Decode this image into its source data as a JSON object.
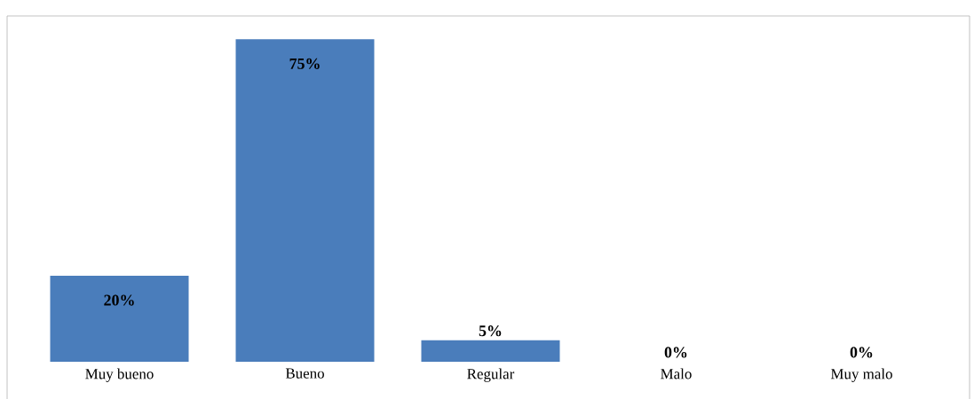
{
  "chart_data": {
    "type": "bar",
    "categories": [
      "Muy bueno",
      "Bueno",
      "Regular",
      "Malo",
      "Muy malo"
    ],
    "values": [
      20,
      75,
      5,
      0,
      0
    ],
    "value_labels": [
      "20%",
      "75%",
      "5%",
      "0%",
      "0%"
    ],
    "color": "#4a7dbb",
    "ylim": [
      0,
      80
    ],
    "tick_labels": "x",
    "grid": false
  }
}
